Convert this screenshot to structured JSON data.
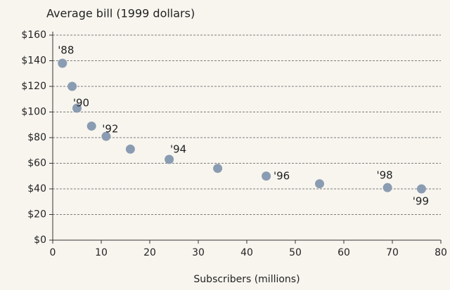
{
  "chart_data": {
    "type": "scatter",
    "title": "Average bill (1999 dollars)",
    "x_label": "Subscribers (millions)",
    "x": [
      2,
      4,
      5,
      8,
      11,
      16,
      24,
      34,
      44,
      55,
      69,
      76
    ],
    "values": [
      138,
      120,
      103,
      89,
      81,
      71,
      63,
      56,
      50,
      44,
      41,
      40
    ],
    "point_labels": [
      "'88",
      null,
      "'90",
      null,
      "'92",
      null,
      "'94",
      null,
      "'96",
      null,
      "'98",
      "'99"
    ],
    "color": "#8a9cb2",
    "xlim": [
      0,
      80
    ],
    "xticks": [
      0,
      10,
      20,
      30,
      40,
      50,
      60,
      70,
      80
    ],
    "ylim": [
      0,
      160
    ],
    "yticks": [
      {
        "value": 0,
        "label": "$0"
      },
      {
        "value": 20,
        "label": "$20"
      },
      {
        "value": 40,
        "label": "$40"
      },
      {
        "value": 60,
        "label": "$60"
      },
      {
        "value": 80,
        "label": "$80"
      },
      {
        "value": 100,
        "label": "$100"
      },
      {
        "value": 120,
        "label": "$120"
      },
      {
        "value": 140,
        "label": "$140"
      },
      {
        "value": 160,
        "label": "$160"
      }
    ],
    "grid": true
  }
}
